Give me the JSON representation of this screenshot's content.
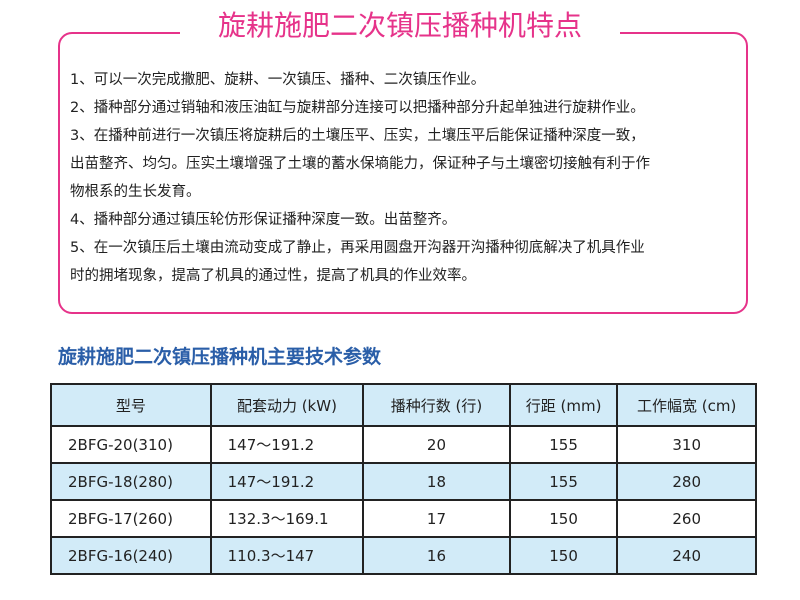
{
  "title": "旋耕施肥二次镇压播种机特点",
  "features": [
    "1、可以一次完成撒肥、旋耕、一次镇压、播种、二次镇压作业。",
    "2、播种部分通过销轴和液压油缸与旋耕部分连接可以把播种部分升起单独进行旋耕作业。",
    "3、在播种前进行一次镇压将旋耕后的土壤压平、压实，土壤压平后能保证播种深度一致，",
    "出苗整齐、均匀。压实土壤增强了土壤的蓄水保墒能力，保证种子与土壤密切接触有利于作",
    "物根系的生长发育。",
    "4、播种部分通过镇压轮仿形保证播种深度一致。出苗整齐。",
    "5、在一次镇压后土壤由流动变成了静止，再采用圆盘开沟器开沟播种彻底解决了机具作业",
    "时的拥堵现象，提高了机具的通过性，提高了机具的作业效率。"
  ],
  "table_title": "旋耕施肥二次镇压播种机主要技术参数",
  "table": {
    "headers": [
      "型号",
      "配套动力 (kW)",
      "播种行数 (行)",
      "行距 (mm)",
      "工作幅宽 (cm)"
    ],
    "rows": [
      [
        "2BFG-20(310)",
        "147～191.2",
        "20",
        "155",
        "310"
      ],
      [
        "2BFG-18(280)",
        "147～191.2",
        "18",
        "155",
        "280"
      ],
      [
        "2BFG-17(260)",
        "132.3～169.1",
        "17",
        "150",
        "260"
      ],
      [
        "2BFG-16(240)",
        "110.3～147",
        "16",
        "150",
        "240"
      ]
    ]
  },
  "colors": {
    "accent": "#e6338a",
    "subtitle": "#2a5ea8",
    "row_highlight": "#d2ebf8"
  }
}
